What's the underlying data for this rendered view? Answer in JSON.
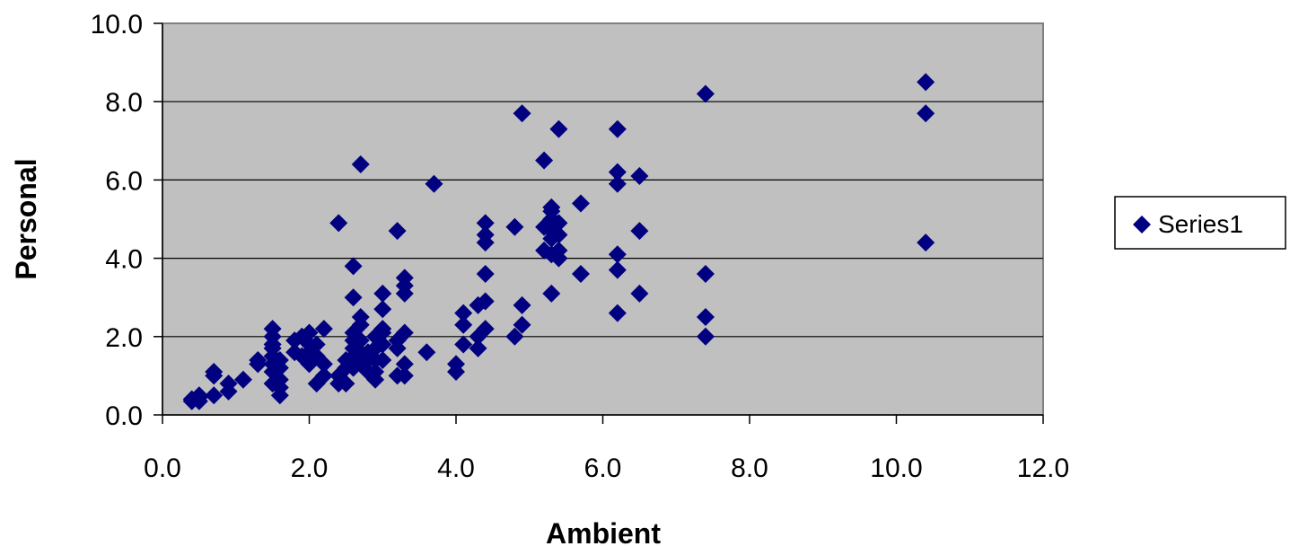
{
  "chart_data": {
    "type": "scatter",
    "title": "",
    "xlabel": "Ambient",
    "ylabel": "Personal",
    "xlim": [
      0,
      12
    ],
    "ylim": [
      0,
      10
    ],
    "x_ticks": [
      "0.0",
      "2.0",
      "4.0",
      "6.0",
      "8.0",
      "10.0",
      "12.0"
    ],
    "y_ticks": [
      "0.0",
      "2.0",
      "4.0",
      "6.0",
      "8.0",
      "10.0"
    ],
    "grid": "horizontal",
    "plot_background": "#c0c0c0",
    "legend_position": "right",
    "series": [
      {
        "name": "Series1",
        "color": "#000080",
        "marker": "diamond",
        "points": [
          [
            0.4,
            0.35
          ],
          [
            0.4,
            0.4
          ],
          [
            0.5,
            0.45
          ],
          [
            0.5,
            0.35
          ],
          [
            0.5,
            0.5
          ],
          [
            0.7,
            0.5
          ],
          [
            0.7,
            1.0
          ],
          [
            0.7,
            1.1
          ],
          [
            0.9,
            0.6
          ],
          [
            0.9,
            0.8
          ],
          [
            1.1,
            0.9
          ],
          [
            1.3,
            1.3
          ],
          [
            1.3,
            1.4
          ],
          [
            1.5,
            0.8
          ],
          [
            1.5,
            1.1
          ],
          [
            1.5,
            1.3
          ],
          [
            1.5,
            1.5
          ],
          [
            1.5,
            1.7
          ],
          [
            1.5,
            1.8
          ],
          [
            1.5,
            2.0
          ],
          [
            1.5,
            2.2
          ],
          [
            1.6,
            0.5
          ],
          [
            1.6,
            0.7
          ],
          [
            1.6,
            0.9
          ],
          [
            1.6,
            1.2
          ],
          [
            1.6,
            1.4
          ],
          [
            1.8,
            1.6
          ],
          [
            1.8,
            1.9
          ],
          [
            1.9,
            1.5
          ],
          [
            1.9,
            2.0
          ],
          [
            2.0,
            1.3
          ],
          [
            2.0,
            1.6
          ],
          [
            2.0,
            1.8
          ],
          [
            2.0,
            2.1
          ],
          [
            2.1,
            0.8
          ],
          [
            2.1,
            1.5
          ],
          [
            2.1,
            1.8
          ],
          [
            2.2,
            1.0
          ],
          [
            2.2,
            1.3
          ],
          [
            2.2,
            2.2
          ],
          [
            2.4,
            0.8
          ],
          [
            2.4,
            1.0
          ],
          [
            2.4,
            4.9
          ],
          [
            2.5,
            0.8
          ],
          [
            2.5,
            1.2
          ],
          [
            2.5,
            1.4
          ],
          [
            2.6,
            1.2
          ],
          [
            2.6,
            1.5
          ],
          [
            2.6,
            1.7
          ],
          [
            2.6,
            1.9
          ],
          [
            2.6,
            2.1
          ],
          [
            2.6,
            3.0
          ],
          [
            2.6,
            3.8
          ],
          [
            2.7,
            1.3
          ],
          [
            2.7,
            1.6
          ],
          [
            2.7,
            1.9
          ],
          [
            2.7,
            2.3
          ],
          [
            2.7,
            2.5
          ],
          [
            2.7,
            6.4
          ],
          [
            2.8,
            1.1
          ],
          [
            2.8,
            1.4
          ],
          [
            2.8,
            1.6
          ],
          [
            2.9,
            0.9
          ],
          [
            2.9,
            1.1
          ],
          [
            2.9,
            1.4
          ],
          [
            2.9,
            1.7
          ],
          [
            2.9,
            2.0
          ],
          [
            3.0,
            1.4
          ],
          [
            3.0,
            1.8
          ],
          [
            3.0,
            2.1
          ],
          [
            3.0,
            2.2
          ],
          [
            3.0,
            2.7
          ],
          [
            3.0,
            3.1
          ],
          [
            3.2,
            1.0
          ],
          [
            3.2,
            1.7
          ],
          [
            3.2,
            1.9
          ],
          [
            3.2,
            4.7
          ],
          [
            3.3,
            1.0
          ],
          [
            3.3,
            1.3
          ],
          [
            3.3,
            2.1
          ],
          [
            3.3,
            3.1
          ],
          [
            3.3,
            3.3
          ],
          [
            3.3,
            3.5
          ],
          [
            3.6,
            1.6
          ],
          [
            3.7,
            5.9
          ],
          [
            4.0,
            1.1
          ],
          [
            4.0,
            1.3
          ],
          [
            4.1,
            1.8
          ],
          [
            4.1,
            2.3
          ],
          [
            4.1,
            2.6
          ],
          [
            4.3,
            1.7
          ],
          [
            4.3,
            2.0
          ],
          [
            4.3,
            2.8
          ],
          [
            4.4,
            2.2
          ],
          [
            4.4,
            2.9
          ],
          [
            4.4,
            3.6
          ],
          [
            4.4,
            4.4
          ],
          [
            4.4,
            4.6
          ],
          [
            4.4,
            4.9
          ],
          [
            4.8,
            2.0
          ],
          [
            4.8,
            4.8
          ],
          [
            4.9,
            2.3
          ],
          [
            4.9,
            2.8
          ],
          [
            4.9,
            7.7
          ],
          [
            5.2,
            4.2
          ],
          [
            5.2,
            4.8
          ],
          [
            5.2,
            6.5
          ],
          [
            5.3,
            3.1
          ],
          [
            5.3,
            4.1
          ],
          [
            5.3,
            4.5
          ],
          [
            5.3,
            4.7
          ],
          [
            5.3,
            5.0
          ],
          [
            5.3,
            5.2
          ],
          [
            5.3,
            5.3
          ],
          [
            5.4,
            4.0
          ],
          [
            5.4,
            4.2
          ],
          [
            5.4,
            4.6
          ],
          [
            5.4,
            4.9
          ],
          [
            5.4,
            7.3
          ],
          [
            5.7,
            3.6
          ],
          [
            5.7,
            5.4
          ],
          [
            6.2,
            2.6
          ],
          [
            6.2,
            3.7
          ],
          [
            6.2,
            4.1
          ],
          [
            6.2,
            5.9
          ],
          [
            6.2,
            6.2
          ],
          [
            6.2,
            7.3
          ],
          [
            6.5,
            3.1
          ],
          [
            6.5,
            4.7
          ],
          [
            6.5,
            6.1
          ],
          [
            7.4,
            2.0
          ],
          [
            7.4,
            2.5
          ],
          [
            7.4,
            3.6
          ],
          [
            7.4,
            8.2
          ],
          [
            10.4,
            4.4
          ],
          [
            10.4,
            7.7
          ],
          [
            10.4,
            8.5
          ]
        ]
      }
    ]
  }
}
